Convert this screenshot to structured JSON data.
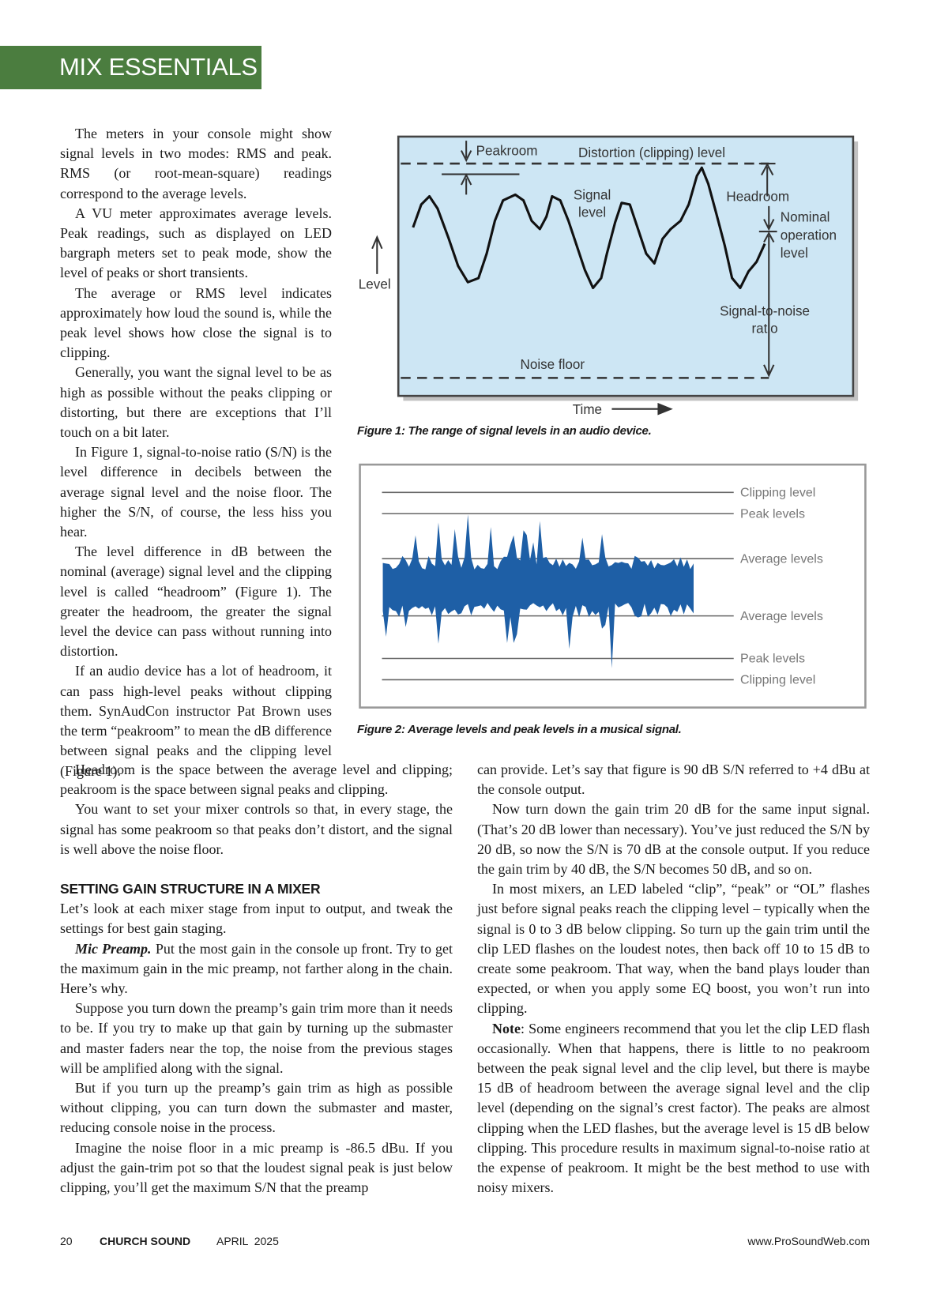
{
  "header": {
    "section": "MIX ESSENTIALS"
  },
  "intro_column": [
    "The meters in your console might show signal levels in two modes: RMS and peak. RMS (or root-mean-square) readings correspond to the average levels.",
    "A VU meter approximates average levels. Peak readings, such as displayed on LED bargraph meters set to peak mode, show the level of peaks or short transients.",
    "The average or RMS level indicates approximately how loud the sound is, while the peak level shows how close the signal is to clipping.",
    "Generally, you want the signal level to be as high as possible without the peaks clipping or distorting, but there are exceptions that I’ll touch on a bit later.",
    "In Figure 1, signal-to-noise ratio (S/N) is the level difference in decibels between the average signal level and the noise floor. The higher the S/N, of course, the less hiss you hear.",
    "The level difference in dB between the nominal (average) signal level and the clipping level is called “headroom” (Figure 1). The greater the headroom, the greater the signal level the device can pass without running into distortion.",
    "If an audio device has a lot of headroom, it can pass high-level peaks without clipping them. SynAudCon instructor Pat Brown uses the term “peakroom” to mean the dB difference between signal peaks and the clipping level (Figure 1)."
  ],
  "figures": [
    {
      "labels": {
        "peakroom": "Peakroom",
        "distortion": "Distortion (clipping) level",
        "signal_level": [
          "Signal",
          "level"
        ],
        "headroom": "Headroom",
        "nominal": [
          "Nominal",
          "operation",
          "level"
        ],
        "snr": [
          "Signal-to-noise",
          "ratio"
        ],
        "noise_floor": "Noise floor",
        "level": "Level",
        "time": "Time"
      },
      "caption": "Figure 1: The range of signal levels in an audio device."
    },
    {
      "labels": [
        "Clipping level",
        "Peak levels",
        "Average levels",
        "Average levels",
        "Peak levels",
        "Clipping level"
      ],
      "caption": "Figure 2: Average levels and peak levels in a musical signal."
    }
  ],
  "left_column": [
    {
      "text": "Headroom is the space between the average level and clipping; peakroom is the space between signal peaks and clipping."
    },
    {
      "text": "You want to set your mixer controls so that, in every stage, the signal has some peakroom so that peaks don’t distort, and the signal is well above the noise floor."
    },
    {
      "heading": "SETTING GAIN STRUCTURE IN A MIXER"
    },
    {
      "text": "Let’s look at each mixer stage from input to output, and tweak the settings for best gain staging."
    },
    {
      "run_in": "Mic Preamp.",
      "text": "Put the most gain in the console up front. Try to get the maximum gain in the mic preamp, not farther along in the chain. Here’s why."
    },
    {
      "text": "Suppose you turn down the preamp’s gain trim more than it needs to be. If you try to make up that gain by turning up the submaster and master faders near the top, the noise from the previous stages will be amplified along with the signal."
    },
    {
      "text": "But if you turn up the preamp’s gain trim as high as possible without clipping, you can turn down the submaster and master, reducing console noise in the process."
    },
    {
      "text": "Imagine the noise floor in a mic preamp is -86.5 dBu. If you adjust the gain-trim pot so that the loudest signal peak is just below clipping, you’ll get the maximum S/N that the preamp"
    }
  ],
  "right_column": [
    {
      "text": "can provide. Let’s say that figure is 90 dB S/N referred to +4 dBu at the console output."
    },
    {
      "text": "Now turn down the gain trim 20 dB for the same input signal. (That’s 20 dB lower than necessary). You’ve just reduced the S/N by 20 dB, so now the S/N is 70 dB at the console output. If you reduce the gain trim by 40 dB, the S/N becomes 50 dB, and so on."
    },
    {
      "text": "In most mixers, an LED labeled “clip”, “peak” or “OL” flashes just before signal peaks reach the clipping level – typically when the signal is 0 to 3 dB below clipping. So turn up the gain trim until the clip LED flashes on the loudest notes, then back off 10 to 15 dB to create some peakroom. That way, when the band plays louder than expected, or when you apply some EQ boost, you won’t run into clipping."
    },
    {
      "bold": "Note",
      "text": ": Some engineers recommend that you let the clip LED flash occasionally. When that happens, there is little to no peakroom between the peak signal level and the clip level, but there is maybe 15 dB of headroom between the average signal level and the clip level (depending on the signal’s crest factor). The peaks are almost clipping when the LED flashes, but the average level is 15 dB below clipping. This procedure results in maximum signal-to-noise ratio at the expense of peakroom. It might be the best method to use with noisy mixers."
    }
  ],
  "footer": {
    "page_number": "20",
    "publication": "CHURCH SOUND",
    "issue": "APRIL  2025",
    "website": "www.ProSoundWeb.com"
  }
}
